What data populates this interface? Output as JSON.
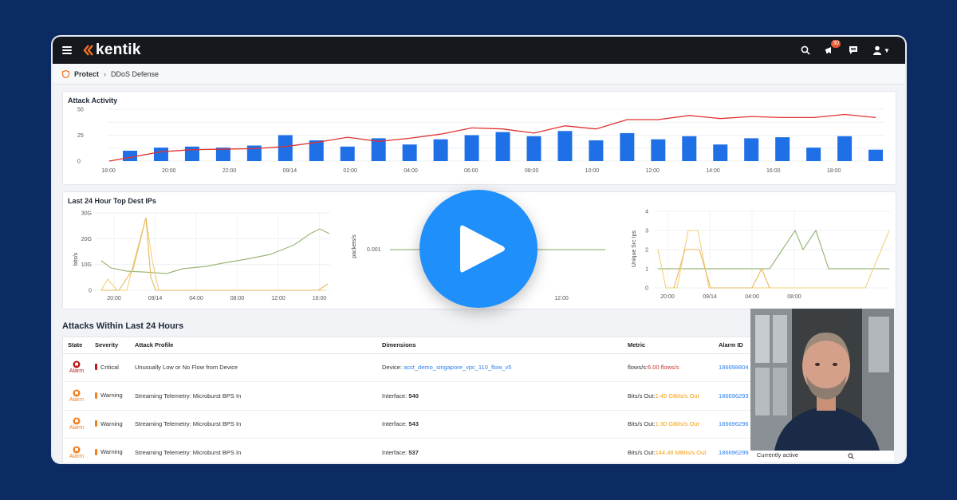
{
  "app": {
    "brand": "kentik",
    "notification_count": "30"
  },
  "breadcrumb": {
    "root": "Protect",
    "page": "DDoS Defense"
  },
  "attack_activity": {
    "title": "Attack Activity",
    "chart_data": {
      "type": "bar",
      "y_ticks": [
        "50",
        "25",
        "0"
      ],
      "x_ticks": [
        "18:00",
        "20:00",
        "22:00",
        "09/14",
        "02:00",
        "04:00",
        "06:00",
        "08:00",
        "10:00",
        "12:00",
        "14:00",
        "16:00",
        "18:00"
      ],
      "ylim": [
        0,
        50
      ],
      "bar_values": [
        10,
        13,
        14,
        13,
        15,
        25,
        20,
        14,
        22,
        16,
        21,
        25,
        28,
        24,
        29,
        20,
        27,
        21,
        24,
        16,
        22,
        23,
        13,
        24,
        11
      ],
      "line_values": [
        0,
        9,
        11,
        11.5,
        12,
        14,
        18,
        23,
        19,
        22,
        26,
        32,
        31,
        27,
        34,
        31,
        40,
        40,
        44,
        41,
        43,
        42,
        42,
        45,
        42
      ],
      "bar_color": "#1f6fe6",
      "line_color": "#e03131"
    }
  },
  "top_dest_ips": {
    "title": "Last 24 Hour Top Dest IPs",
    "charts": [
      {
        "ylabel": "bits/s",
        "y_ticks": [
          "30G",
          "20G",
          "10G",
          "0"
        ],
        "x_ticks": [
          "20:00",
          "09/14",
          "04:00",
          "08:00",
          "12:00",
          "16:00"
        ]
      },
      {
        "ylabel": "packets/s",
        "y_ticks": [
          "0.001"
        ],
        "x_ticks": [
          "09/",
          "12:00"
        ]
      },
      {
        "ylabel": "Unique Src Ips",
        "y_ticks": [
          "4",
          "3",
          "2",
          "1",
          "0"
        ],
        "x_ticks": [
          "20:00",
          "09/14",
          "04:00",
          "08:00"
        ]
      }
    ],
    "series_colors": [
      "#9bb87a",
      "#f0d27a",
      "#e8b860"
    ]
  },
  "attacks": {
    "title": "Attacks Within Last 24 Hours",
    "columns": [
      "State",
      "Severity",
      "Attack Profile",
      "Dimensions",
      "Metric",
      "Alarm ID"
    ],
    "rows": [
      {
        "state": "Alarm",
        "severity": "Critical",
        "profile": "Unusually Low or No Flow from Device",
        "dimension_label": "Device:",
        "dimension_value": "acct_demo_singapore_vpc_110_flow_v5",
        "metric_label": "flows/s:",
        "metric_value": "6.00 flows/s",
        "alarm_id": "186698804"
      },
      {
        "state": "Alarm",
        "severity": "Warning",
        "profile": "Streaming Telemetry: Microburst BPS In",
        "dimension_label": "Interface:",
        "dimension_value": "540",
        "metric_label": "Bits/s Out:",
        "metric_value": "1.45 GBits/s Out",
        "alarm_id": "186696293"
      },
      {
        "state": "Alarm",
        "severity": "Warning",
        "profile": "Streaming Telemetry: Microburst BPS In",
        "dimension_label": "Interface:",
        "dimension_value": "543",
        "metric_label": "Bits/s Out:",
        "metric_value": "1.30 GBits/s Out",
        "alarm_id": "186696296"
      },
      {
        "state": "Alarm",
        "severity": "Warning",
        "profile": "Streaming Telemetry: Microburst BPS In",
        "dimension_label": "Interface:",
        "dimension_value": "537",
        "metric_label": "Bits/s Out:",
        "metric_value": "144.46 MBits/s Out",
        "alarm_id": "186696299"
      }
    ]
  },
  "video_overlay": {
    "caption": "Currently active"
  },
  "colors": {
    "critical": "#b91c1c",
    "warning": "#f07f1c",
    "link": "#2f80ed",
    "play": "#1e8ffb"
  }
}
